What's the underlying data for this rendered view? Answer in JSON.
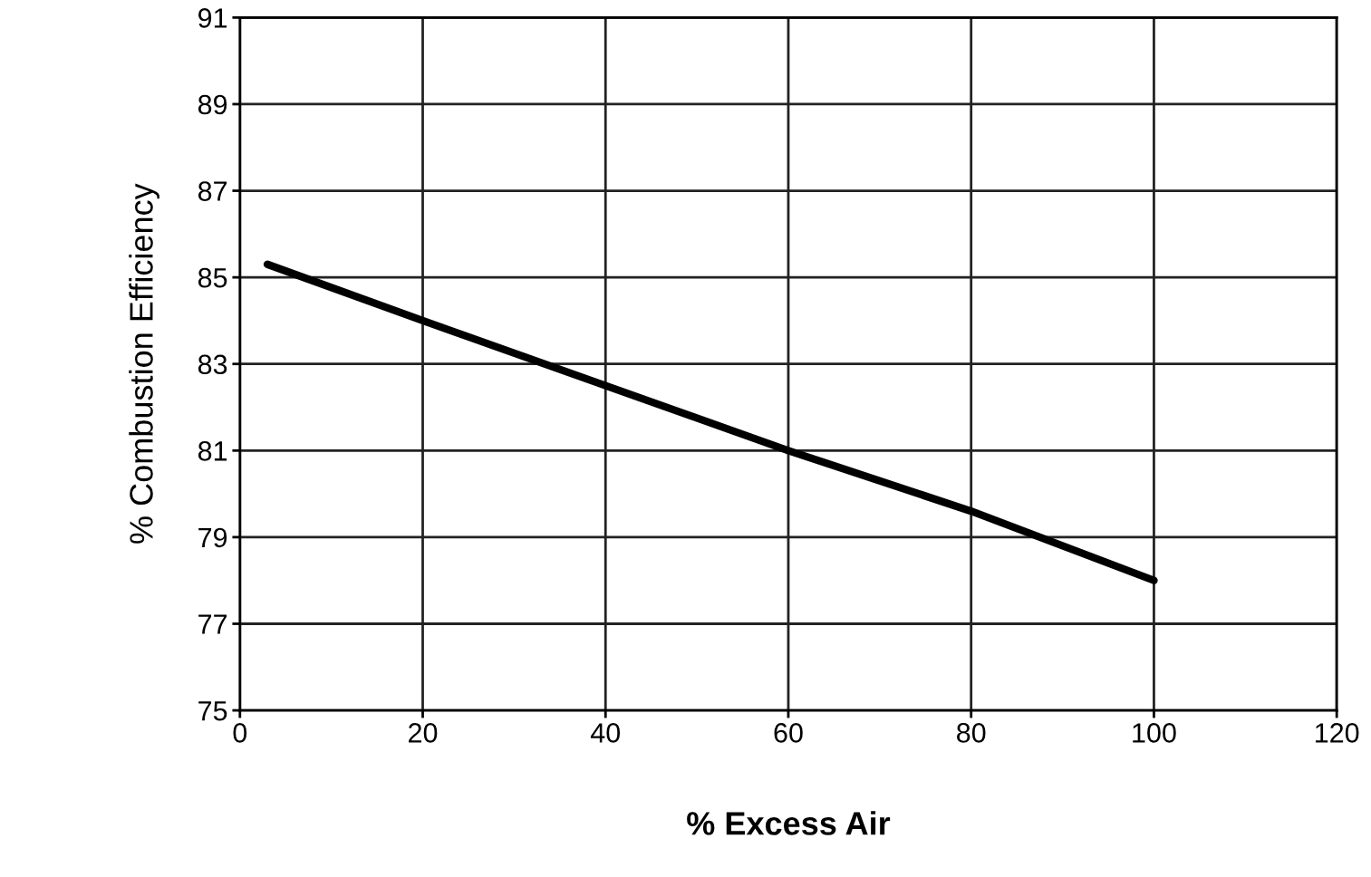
{
  "chart_data": {
    "type": "line",
    "xlabel": "% Excess Air",
    "ylabel": "% Combustion Efficiency",
    "series": [
      {
        "color": "#000000",
        "x": [
          3,
          20,
          40,
          60,
          80,
          100
        ],
        "values": [
          85.3,
          84.0,
          82.5,
          81.0,
          79.6,
          78.0
        ]
      }
    ],
    "xlim": [
      0,
      120
    ],
    "xticks": [
      0,
      20,
      40,
      60,
      80,
      100,
      120
    ],
    "ylim": [
      75,
      91
    ],
    "yticks": [
      75,
      77,
      79,
      81,
      83,
      85,
      87,
      89,
      91
    ],
    "grid": true,
    "legend": false,
    "marker": "none",
    "line_style": "solid"
  }
}
